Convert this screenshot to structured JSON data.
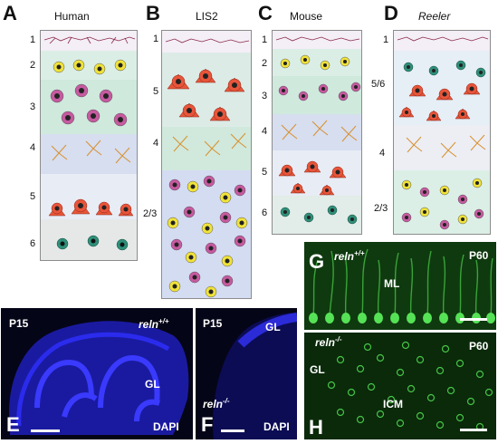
{
  "panels": {
    "A": {
      "letter": "A",
      "title": "Human",
      "layers": [
        "1",
        "2",
        "3",
        "4",
        "5",
        "6"
      ]
    },
    "B": {
      "letter": "B",
      "title": "LIS2",
      "layers": [
        "1",
        "5",
        "4",
        "2/3"
      ]
    },
    "C": {
      "letter": "C",
      "title": "Mouse",
      "layers": [
        "1",
        "2",
        "3",
        "4",
        "5",
        "6"
      ]
    },
    "D": {
      "letter": "D",
      "title": "Reeler",
      "layers": [
        "1",
        "5/6",
        "4",
        "2/3"
      ]
    }
  },
  "micrographs": {
    "E": {
      "letter": "E",
      "age": "P15",
      "genotype": "reln",
      "sup": "+/+",
      "region": "GL",
      "stain": "DAPI"
    },
    "F": {
      "letter": "F",
      "age": "P15",
      "genotype": "reln",
      "sup": "-/-",
      "region": "GL",
      "stain": "DAPI"
    },
    "G": {
      "letter": "G",
      "age": "P60",
      "genotype": "reln",
      "sup": "+/+",
      "region": "ML"
    },
    "H": {
      "letter": "H",
      "age": "P60",
      "genotype": "reln",
      "sup": "-/-",
      "region1": "GL",
      "region2": "ICM"
    }
  },
  "colors": {
    "red_cell": "#e8553a",
    "yellow_cell": "#f0e23a",
    "magenta_cell": "#c65aa0",
    "teal_cell": "#2e8f7a",
    "orange_stellate": "#d9902f",
    "dapi_blue": "#2323d6",
    "gfp_green": "#32c132"
  }
}
